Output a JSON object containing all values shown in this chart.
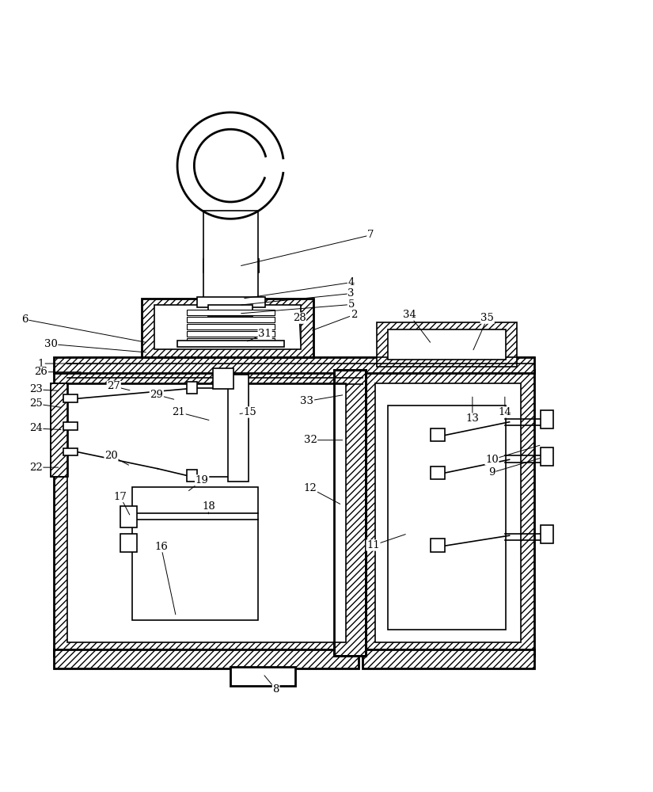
{
  "background_color": "#ffffff",
  "line_color": "#000000",
  "fig_width": 8.25,
  "fig_height": 10.0
}
